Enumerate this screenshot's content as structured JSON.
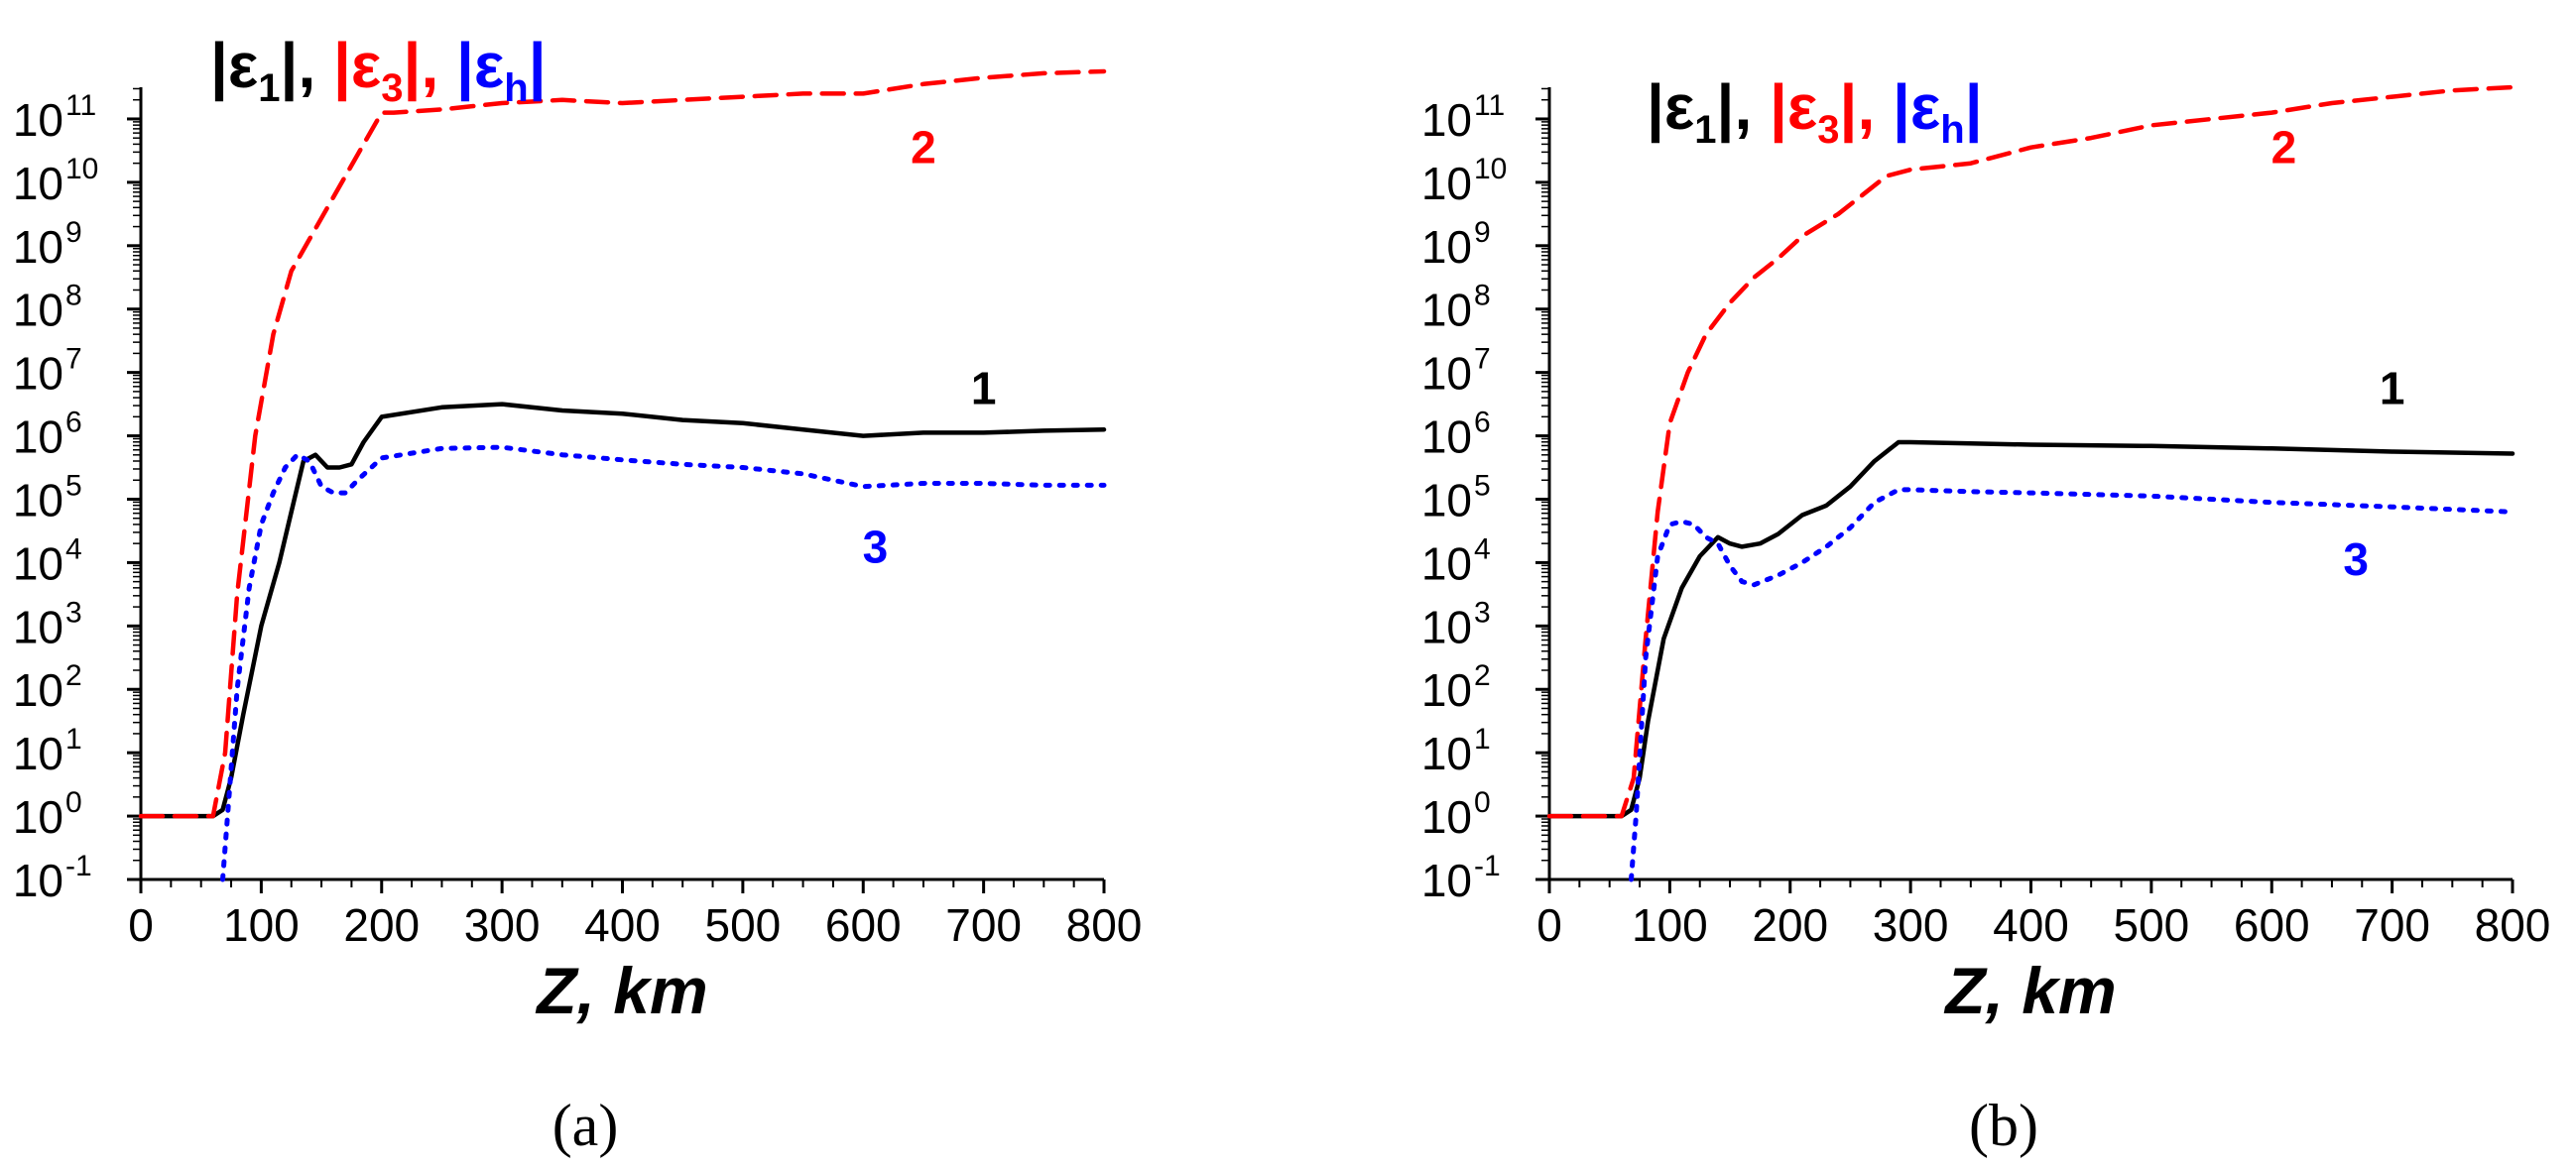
{
  "chart_data": [
    {
      "type": "line",
      "panel_label": "(a)",
      "xlabel": "Z, km",
      "yscale": "log",
      "xlim": [
        0,
        800
      ],
      "ylim_exp": [
        -1,
        11.5
      ],
      "x_ticks": [
        "0",
        "100",
        "200",
        "300",
        "400",
        "500",
        "600",
        "700",
        "800"
      ],
      "y_ticks": [
        {
          "base": "10",
          "exp": "-1"
        },
        {
          "base": "10",
          "exp": "0"
        },
        {
          "base": "10",
          "exp": "1"
        },
        {
          "base": "10",
          "exp": "2"
        },
        {
          "base": "10",
          "exp": "3"
        },
        {
          "base": "10",
          "exp": "4"
        },
        {
          "base": "10",
          "exp": "5"
        },
        {
          "base": "10",
          "exp": "6"
        },
        {
          "base": "10",
          "exp": "7"
        },
        {
          "base": "10",
          "exp": "8"
        },
        {
          "base": "10",
          "exp": "9"
        },
        {
          "base": "10",
          "exp": "10"
        },
        {
          "base": "10",
          "exp": "11"
        }
      ],
      "legend": [
        {
          "prefix": "|ε",
          "sub": "1",
          "suffix": "|, ",
          "color": "#000000"
        },
        {
          "prefix": "|ε",
          "sub": "3",
          "suffix": "|, ",
          "color": "#ff0000"
        },
        {
          "prefix": "|ε",
          "sub": "h",
          "suffix": "|",
          "color": "#0000ff"
        }
      ],
      "series": [
        {
          "name": "1",
          "label": "1",
          "color": "#000000",
          "style": "solid",
          "label_at": [
            700,
            6.5
          ],
          "points": [
            [
              0,
              0
            ],
            [
              60,
              0
            ],
            [
              68,
              0.1
            ],
            [
              75,
              0.6
            ],
            [
              85,
              1.6
            ],
            [
              100,
              3
            ],
            [
              115,
              4
            ],
            [
              125,
              4.8
            ],
            [
              135,
              5.6
            ],
            [
              145,
              5.7
            ],
            [
              155,
              5.5
            ],
            [
              165,
              5.5
            ],
            [
              175,
              5.55
            ],
            [
              185,
              5.9
            ],
            [
              200,
              6.3
            ],
            [
              250,
              6.45
            ],
            [
              300,
              6.5
            ],
            [
              350,
              6.4
            ],
            [
              400,
              6.35
            ],
            [
              450,
              6.25
            ],
            [
              500,
              6.2
            ],
            [
              550,
              6.1
            ],
            [
              600,
              6.0
            ],
            [
              650,
              6.05
            ],
            [
              700,
              6.05
            ],
            [
              750,
              6.08
            ],
            [
              800,
              6.1
            ]
          ]
        },
        {
          "name": "2",
          "label": "2",
          "color": "#ff0000",
          "style": "dashed",
          "label_at": [
            650,
            10.3
          ],
          "points": [
            [
              0,
              0
            ],
            [
              60,
              0
            ],
            [
              70,
              1
            ],
            [
              80,
              3.5
            ],
            [
              95,
              6
            ],
            [
              110,
              7.6
            ],
            [
              125,
              8.6
            ],
            [
              140,
              9.1
            ],
            [
              155,
              9.6
            ],
            [
              170,
              10.1
            ],
            [
              185,
              10.6
            ],
            [
              200,
              11.1
            ],
            [
              210,
              11.1
            ],
            [
              250,
              11.15
            ],
            [
              300,
              11.25
            ],
            [
              350,
              11.3
            ],
            [
              400,
              11.25
            ],
            [
              450,
              11.3
            ],
            [
              500,
              11.35
            ],
            [
              550,
              11.4
            ],
            [
              600,
              11.4
            ],
            [
              650,
              11.55
            ],
            [
              700,
              11.65
            ],
            [
              750,
              11.72
            ],
            [
              800,
              11.75
            ]
          ]
        },
        {
          "name": "3",
          "label": "3",
          "color": "#0000ff",
          "style": "dotted",
          "label_at": [
            610,
            4.0
          ],
          "points": [
            [
              68,
              -1
            ],
            [
              72,
              0
            ],
            [
              80,
              2
            ],
            [
              90,
              3.6
            ],
            [
              100,
              4.6
            ],
            [
              110,
              5.1
            ],
            [
              120,
              5.5
            ],
            [
              130,
              5.7
            ],
            [
              140,
              5.6
            ],
            [
              150,
              5.2
            ],
            [
              160,
              5.1
            ],
            [
              170,
              5.1
            ],
            [
              180,
              5.3
            ],
            [
              200,
              5.65
            ],
            [
              250,
              5.8
            ],
            [
              300,
              5.82
            ],
            [
              350,
              5.7
            ],
            [
              400,
              5.62
            ],
            [
              450,
              5.55
            ],
            [
              500,
              5.5
            ],
            [
              550,
              5.4
            ],
            [
              600,
              5.2
            ],
            [
              650,
              5.25
            ],
            [
              700,
              5.25
            ],
            [
              750,
              5.22
            ],
            [
              800,
              5.22
            ]
          ]
        }
      ]
    },
    {
      "type": "line",
      "panel_label": "(b)",
      "xlabel": "Z, km",
      "yscale": "log",
      "xlim": [
        0,
        800
      ],
      "ylim_exp": [
        -1,
        11.5
      ],
      "x_ticks": [
        "0",
        "100",
        "200",
        "300",
        "400",
        "500",
        "600",
        "700",
        "800"
      ],
      "y_ticks": [
        {
          "base": "10",
          "exp": "-1"
        },
        {
          "base": "10",
          "exp": "0"
        },
        {
          "base": "10",
          "exp": "1"
        },
        {
          "base": "10",
          "exp": "2"
        },
        {
          "base": "10",
          "exp": "3"
        },
        {
          "base": "10",
          "exp": "4"
        },
        {
          "base": "10",
          "exp": "5"
        },
        {
          "base": "10",
          "exp": "6"
        },
        {
          "base": "10",
          "exp": "7"
        },
        {
          "base": "10",
          "exp": "8"
        },
        {
          "base": "10",
          "exp": "9"
        },
        {
          "base": "10",
          "exp": "10"
        },
        {
          "base": "10",
          "exp": "11"
        }
      ],
      "legend": [
        {
          "prefix": "|ε",
          "sub": "1",
          "suffix": "|, ",
          "color": "#000000"
        },
        {
          "prefix": "|ε",
          "sub": "3",
          "suffix": "|, ",
          "color": "#ff0000"
        },
        {
          "prefix": "|ε",
          "sub": "h",
          "suffix": "|",
          "color": "#0000ff"
        }
      ],
      "series": [
        {
          "name": "1",
          "label": "1",
          "color": "#000000",
          "style": "solid",
          "label_at": [
            700,
            6.5
          ],
          "points": [
            [
              0,
              0
            ],
            [
              60,
              0
            ],
            [
              68,
              0.1
            ],
            [
              75,
              0.6
            ],
            [
              82,
              1.5
            ],
            [
              95,
              2.8
            ],
            [
              110,
              3.6
            ],
            [
              125,
              4.1
            ],
            [
              140,
              4.4
            ],
            [
              150,
              4.3
            ],
            [
              160,
              4.25
            ],
            [
              175,
              4.3
            ],
            [
              190,
              4.45
            ],
            [
              210,
              4.75
            ],
            [
              230,
              4.9
            ],
            [
              250,
              5.2
            ],
            [
              270,
              5.6
            ],
            [
              290,
              5.9
            ],
            [
              300,
              5.9
            ],
            [
              350,
              5.88
            ],
            [
              400,
              5.86
            ],
            [
              500,
              5.84
            ],
            [
              600,
              5.8
            ],
            [
              700,
              5.75
            ],
            [
              800,
              5.72
            ]
          ]
        },
        {
          "name": "2",
          "label": "2",
          "color": "#ff0000",
          "style": "dashed",
          "label_at": [
            610,
            10.3
          ],
          "points": [
            [
              0,
              0
            ],
            [
              60,
              0
            ],
            [
              70,
              0.6
            ],
            [
              80,
              2.8
            ],
            [
              90,
              4.8
            ],
            [
              100,
              6.2
            ],
            [
              115,
              7
            ],
            [
              130,
              7.6
            ],
            [
              150,
              8.1
            ],
            [
              170,
              8.5
            ],
            [
              190,
              8.8
            ],
            [
              210,
              9.15
            ],
            [
              240,
              9.5
            ],
            [
              260,
              9.8
            ],
            [
              280,
              10.1
            ],
            [
              300,
              10.2
            ],
            [
              350,
              10.3
            ],
            [
              400,
              10.55
            ],
            [
              450,
              10.7
            ],
            [
              500,
              10.9
            ],
            [
              550,
              11.0
            ],
            [
              600,
              11.1
            ],
            [
              650,
              11.25
            ],
            [
              700,
              11.35
            ],
            [
              750,
              11.45
            ],
            [
              800,
              11.5
            ]
          ]
        },
        {
          "name": "3",
          "label": "3",
          "color": "#0000ff",
          "style": "dotted",
          "label_at": [
            670,
            3.8
          ],
          "points": [
            [
              68,
              -1
            ],
            [
              72,
              0
            ],
            [
              80,
              2.5
            ],
            [
              90,
              4.1
            ],
            [
              100,
              4.6
            ],
            [
              110,
              4.65
            ],
            [
              120,
              4.6
            ],
            [
              130,
              4.4
            ],
            [
              140,
              4.3
            ],
            [
              150,
              3.95
            ],
            [
              160,
              3.7
            ],
            [
              170,
              3.65
            ],
            [
              190,
              3.8
            ],
            [
              210,
              4.0
            ],
            [
              230,
              4.25
            ],
            [
              250,
              4.55
            ],
            [
              270,
              4.95
            ],
            [
              290,
              5.15
            ],
            [
              300,
              5.15
            ],
            [
              350,
              5.12
            ],
            [
              400,
              5.1
            ],
            [
              500,
              5.05
            ],
            [
              600,
              4.95
            ],
            [
              700,
              4.88
            ],
            [
              800,
              4.8
            ]
          ]
        }
      ]
    }
  ]
}
